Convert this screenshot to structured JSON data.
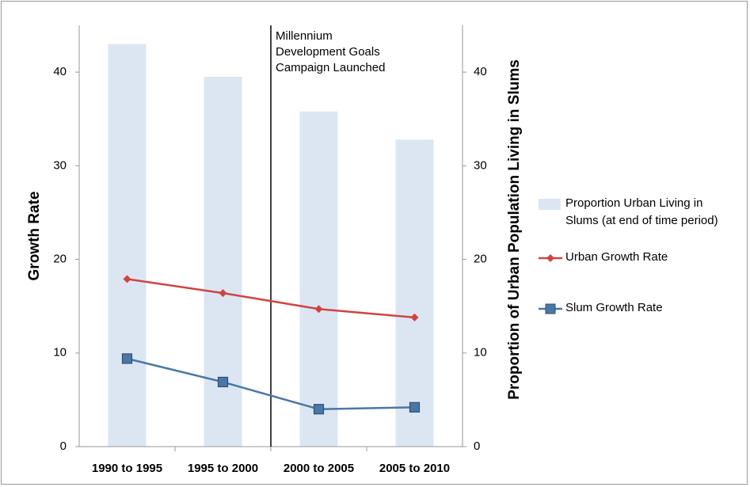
{
  "chart_data": {
    "type": "bar",
    "categories": [
      "1990 to 1995",
      "1995 to 2000",
      "2000 to 2005",
      "2005 to 2010"
    ],
    "series": [
      {
        "name": "Proportion Urban Living in Slums (at end of time period)",
        "type": "bar",
        "axis": "y2",
        "color": "#dce6f2",
        "values": [
          43.0,
          39.5,
          35.8,
          32.8
        ]
      },
      {
        "name": "Urban Growth Rate",
        "type": "line",
        "marker": "diamond",
        "color": "#d0443f",
        "values": [
          17.9,
          16.4,
          14.7,
          13.8
        ]
      },
      {
        "name": "Slum Growth Rate",
        "type": "line",
        "marker": "square",
        "color": "#4a77a8",
        "values": [
          9.4,
          6.9,
          4.0,
          4.2
        ]
      }
    ],
    "ylabel": "Growth Rate",
    "y2label": "Proportion of Urban Population Living in Slums",
    "ylim": [
      0,
      45
    ],
    "yticks": [
      0,
      10,
      20,
      30,
      40
    ],
    "y2lim": [
      0,
      45
    ],
    "y2ticks": [
      0,
      10,
      20,
      30,
      40
    ],
    "annotation": [
      "Millennium",
      "Development Goals",
      "Campaign Launched"
    ],
    "legend": "right"
  }
}
